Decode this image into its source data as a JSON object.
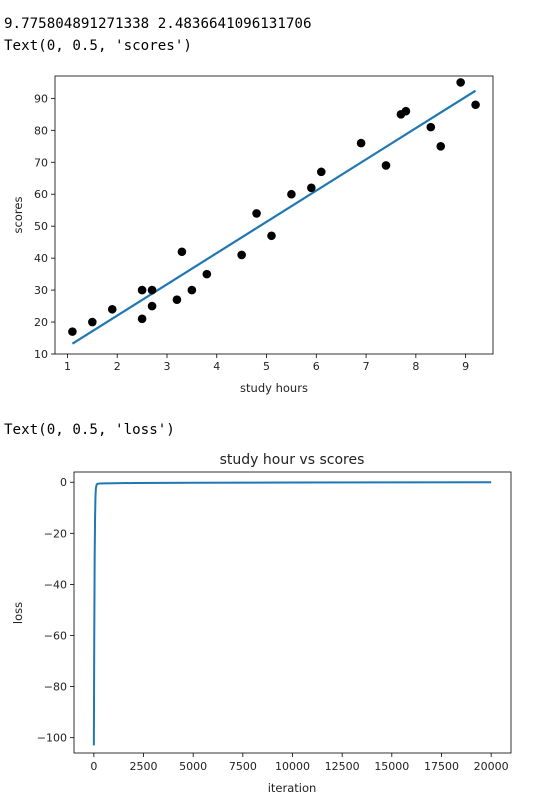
{
  "output": {
    "line1": "9.775804891271338 2.4836641096131706",
    "line2": "Text(0, 0.5, 'scores')",
    "line3": "Text(0, 0.5, 'loss')"
  },
  "chart_data": [
    {
      "type": "scatter",
      "title": "",
      "xlabel": "study hours",
      "ylabel": "scores",
      "xlim": [
        0.75,
        9.55
      ],
      "ylim": [
        10,
        97
      ],
      "xticks": [
        1,
        2,
        3,
        4,
        5,
        6,
        7,
        8,
        9
      ],
      "yticks": [
        10,
        20,
        30,
        40,
        50,
        60,
        70,
        80,
        90
      ],
      "point_color": "#000000",
      "line_color": "#1f77b4",
      "points": [
        [
          1.1,
          17
        ],
        [
          1.5,
          20
        ],
        [
          1.9,
          24
        ],
        [
          2.5,
          21
        ],
        [
          2.5,
          30
        ],
        [
          2.7,
          25
        ],
        [
          2.7,
          30
        ],
        [
          3.2,
          27
        ],
        [
          3.3,
          42
        ],
        [
          3.5,
          30
        ],
        [
          3.8,
          35
        ],
        [
          4.5,
          41
        ],
        [
          4.8,
          54
        ],
        [
          5.1,
          47
        ],
        [
          5.5,
          60
        ],
        [
          5.9,
          62
        ],
        [
          6.1,
          67
        ],
        [
          6.9,
          76
        ],
        [
          7.4,
          69
        ],
        [
          7.7,
          85
        ],
        [
          7.8,
          86
        ],
        [
          8.3,
          81
        ],
        [
          8.5,
          75
        ],
        [
          8.9,
          95
        ],
        [
          9.2,
          88
        ]
      ],
      "fit_line": {
        "slope": 9.775804891271338,
        "intercept": 2.4836641096131706,
        "x_range": [
          1.1,
          9.2
        ]
      }
    },
    {
      "type": "line",
      "title": "study hour vs scores",
      "xlabel": "iteration",
      "ylabel": "loss",
      "xlim": [
        -1000,
        21000
      ],
      "ylim": [
        -106,
        4
      ],
      "xticks": [
        0,
        2500,
        5000,
        7500,
        10000,
        12500,
        15000,
        17500,
        20000
      ],
      "yticks": [
        0,
        -20,
        -40,
        -60,
        -80,
        -100
      ],
      "ytick_labels": [
        "0",
        "−20",
        "−40",
        "−60",
        "−80",
        "−100"
      ],
      "line_color": "#1f77b4",
      "series": [
        {
          "x": [
            0,
            20,
            40,
            60,
            80,
            100,
            130,
            160,
            200,
            300,
            500,
            1000,
            2000,
            5000,
            10000,
            15000,
            20000
          ],
          "y": [
            -103,
            -60,
            -30,
            -14,
            -6,
            -2.5,
            -1.2,
            -0.8,
            -0.6,
            -0.5,
            -0.45,
            -0.4,
            -0.3,
            -0.2,
            -0.1,
            -0.05,
            0
          ]
        }
      ]
    }
  ]
}
